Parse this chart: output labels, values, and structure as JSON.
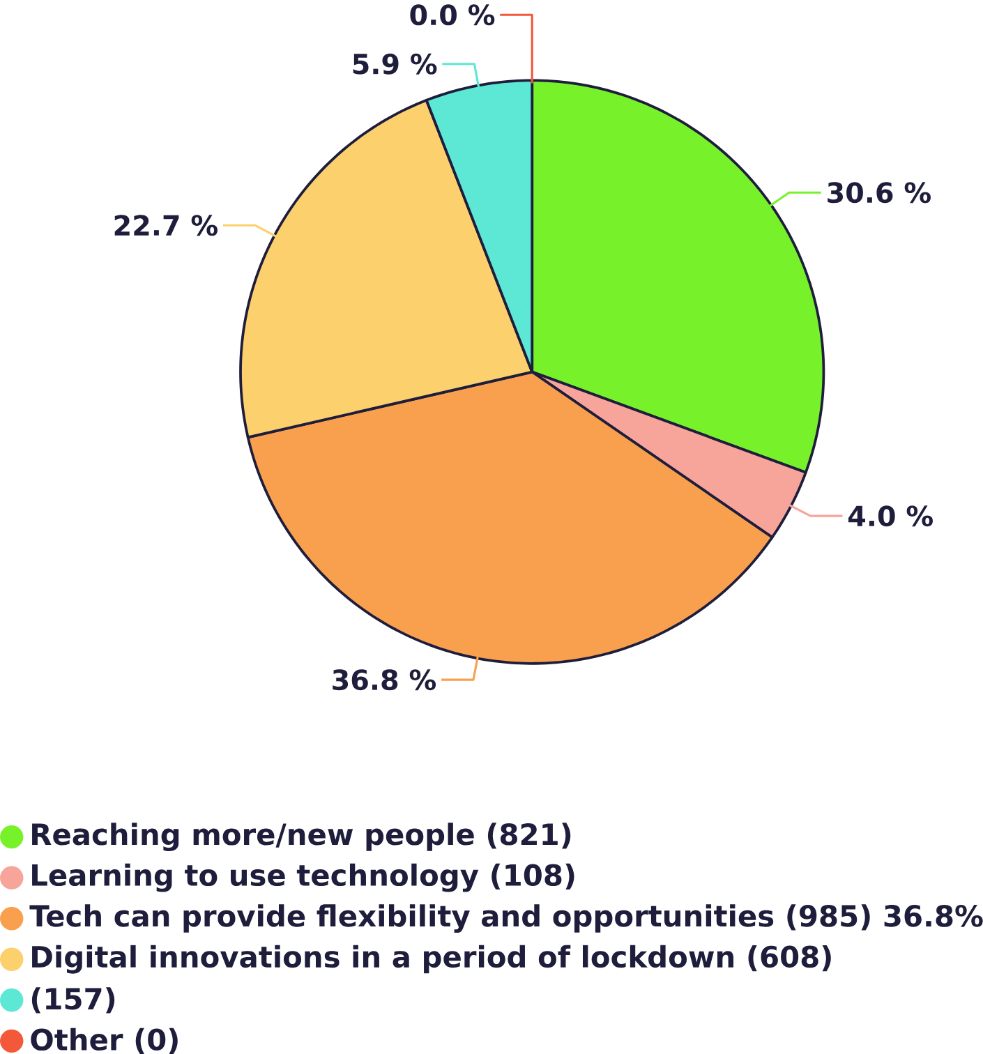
{
  "chart_data": {
    "type": "pie",
    "categories": [
      "Reaching more/new people (821)",
      "Learning to use technology (108)",
      "Tech can provide flexibility and opportunities (985) 36.8%",
      "Digital innovations in a period of lockdown (608)",
      "(157)",
      "Other (0)"
    ],
    "values": [
      30.6,
      4.0,
      36.8,
      22.7,
      5.9,
      0.0
    ],
    "value_labels": [
      "30.6 %",
      "4.0 %",
      "36.8 %",
      "22.7 %",
      "5.9 %",
      "0.0 %"
    ],
    "colors": [
      "#77f22a",
      "#f7a59a",
      "#f9a04f",
      "#fdd06e",
      "#5de8d6",
      "#f4583a"
    ],
    "legend": "bottom"
  }
}
